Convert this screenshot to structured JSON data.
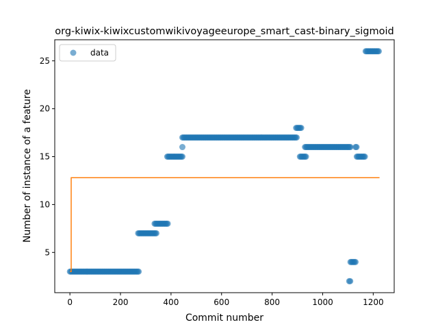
{
  "chart_data": {
    "type": "scatter",
    "title": "org-kiwix-kiwixcustomwikivoyageeurope_smart_cast-binary_sigmoid",
    "xlabel": "Commit number",
    "ylabel": "Number of instance of a feature",
    "xlim": [
      -60,
      1283
    ],
    "ylim": [
      0.8,
      27.2
    ],
    "xticks": [
      0,
      200,
      400,
      600,
      800,
      1000,
      1200
    ],
    "yticks": [
      5,
      10,
      15,
      20,
      25
    ],
    "legend": {
      "position": "top-left",
      "entries": [
        "data"
      ]
    },
    "colors": {
      "data": "#1f77b4",
      "fit": "#ff7f0e"
    },
    "series": [
      {
        "name": "data",
        "kind": "scatter",
        "segments": [
          {
            "x_start": 0,
            "x_end": 275,
            "y": 3
          },
          {
            "x_start": 270,
            "x_end": 345,
            "y": 7
          },
          {
            "x_start": 335,
            "x_end": 390,
            "y": 8
          },
          {
            "x_start": 385,
            "x_end": 445,
            "y": 15
          },
          {
            "x_start": 445,
            "x_end": 445,
            "y": 16
          },
          {
            "x_start": 445,
            "x_end": 900,
            "y": 17
          },
          {
            "x_start": 895,
            "x_end": 915,
            "y": 18
          },
          {
            "x_start": 910,
            "x_end": 935,
            "y": 15
          },
          {
            "x_start": 930,
            "x_end": 1110,
            "y": 16
          },
          {
            "x_start": 1105,
            "x_end": 1110,
            "y": 2
          },
          {
            "x_start": 1110,
            "x_end": 1130,
            "y": 4
          },
          {
            "x_start": 1130,
            "x_end": 1135,
            "y": 16
          },
          {
            "x_start": 1135,
            "x_end": 1170,
            "y": 15
          },
          {
            "x_start": 1170,
            "x_end": 1225,
            "y": 26
          }
        ]
      },
      {
        "name": "",
        "kind": "line",
        "points": [
          [
            0,
            3
          ],
          [
            5,
            3
          ],
          [
            5,
            12.8
          ],
          [
            1225,
            12.8
          ]
        ]
      }
    ]
  }
}
